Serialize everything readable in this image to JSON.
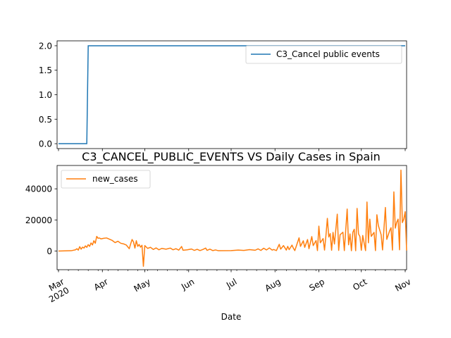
{
  "chart_data": [
    {
      "type": "line",
      "title": "",
      "xlabel": "",
      "ylabel": "",
      "x_range": [
        "2020-03-01",
        "2020-11-01"
      ],
      "ylim": [
        -0.1,
        2.1
      ],
      "y_ticks": [
        0.0,
        0.5,
        1.0,
        1.5,
        2.0
      ],
      "y_tick_labels": [
        "0.0",
        "0.5",
        "1.0",
        "1.5",
        "2.0"
      ],
      "legend_position": "upper-right",
      "grid": false,
      "series": [
        {
          "name": "C3_Cancel public events",
          "color": "#1f77b4",
          "points": [
            {
              "x": "2020-03-01",
              "y": 0
            },
            {
              "x": "2020-03-21",
              "y": 0
            },
            {
              "x": "2020-03-22",
              "y": 2
            },
            {
              "x": "2020-11-01",
              "y": 2
            }
          ]
        }
      ]
    },
    {
      "type": "line",
      "title": "C3_CANCEL_PUBLIC_EVENTS VS Daily Cases in Spain",
      "xlabel": "Date",
      "ylabel": "",
      "x_range": [
        "2020-03-01",
        "2020-11-01"
      ],
      "ylim": [
        -12000,
        55000
      ],
      "y_ticks": [
        0,
        20000,
        40000
      ],
      "y_tick_labels": [
        "0",
        "20000",
        "40000"
      ],
      "x_ticks": [
        {
          "date": "2020-03-01",
          "label": "Mar\n2020"
        },
        {
          "date": "2020-04-01",
          "label": "Apr"
        },
        {
          "date": "2020-05-01",
          "label": "May"
        },
        {
          "date": "2020-06-01",
          "label": "Jun"
        },
        {
          "date": "2020-07-01",
          "label": "Jul"
        },
        {
          "date": "2020-08-01",
          "label": "Aug"
        },
        {
          "date": "2020-09-01",
          "label": "Sep"
        },
        {
          "date": "2020-10-01",
          "label": "Oct"
        },
        {
          "date": "2020-11-01",
          "label": "Nov"
        }
      ],
      "legend_position": "upper-left",
      "grid": false,
      "series": [
        {
          "name": "new_cases",
          "color": "#ff7f0e",
          "points": [
            {
              "x": "2020-03-01",
              "y": 0
            },
            {
              "x": "2020-03-10",
              "y": 200
            },
            {
              "x": "2020-03-13",
              "y": 800
            },
            {
              "x": "2020-03-14",
              "y": 1500
            },
            {
              "x": "2020-03-15",
              "y": 600
            },
            {
              "x": "2020-03-16",
              "y": 2800
            },
            {
              "x": "2020-03-17",
              "y": 1200
            },
            {
              "x": "2020-03-18",
              "y": 2500
            },
            {
              "x": "2020-03-19",
              "y": 1900
            },
            {
              "x": "2020-03-20",
              "y": 3300
            },
            {
              "x": "2020-03-21",
              "y": 2400
            },
            {
              "x": "2020-03-22",
              "y": 4100
            },
            {
              "x": "2020-03-23",
              "y": 3000
            },
            {
              "x": "2020-03-24",
              "y": 5200
            },
            {
              "x": "2020-03-25",
              "y": 3900
            },
            {
              "x": "2020-03-26",
              "y": 6600
            },
            {
              "x": "2020-03-27",
              "y": 5000
            },
            {
              "x": "2020-03-28",
              "y": 9400
            },
            {
              "x": "2020-03-29",
              "y": 8200
            },
            {
              "x": "2020-03-30",
              "y": 8400
            },
            {
              "x": "2020-03-31",
              "y": 7800
            },
            {
              "x": "2020-04-02",
              "y": 8200
            },
            {
              "x": "2020-04-04",
              "y": 8400
            },
            {
              "x": "2020-04-06",
              "y": 7600
            },
            {
              "x": "2020-04-08",
              "y": 6800
            },
            {
              "x": "2020-04-10",
              "y": 5400
            },
            {
              "x": "2020-04-12",
              "y": 6300
            },
            {
              "x": "2020-04-14",
              "y": 5000
            },
            {
              "x": "2020-04-16",
              "y": 4600
            },
            {
              "x": "2020-04-18",
              "y": 3800
            },
            {
              "x": "2020-04-20",
              "y": 1500
            },
            {
              "x": "2020-04-21",
              "y": 4600
            },
            {
              "x": "2020-04-22",
              "y": 7400
            },
            {
              "x": "2020-04-23",
              "y": 5900
            },
            {
              "x": "2020-04-24",
              "y": 1900
            },
            {
              "x": "2020-04-25",
              "y": 6600
            },
            {
              "x": "2020-04-26",
              "y": 3000
            },
            {
              "x": "2020-04-27",
              "y": 4200
            },
            {
              "x": "2020-04-28",
              "y": 2500
            },
            {
              "x": "2020-04-29",
              "y": 3700
            },
            {
              "x": "2020-04-30",
              "y": -9800
            },
            {
              "x": "2020-05-01",
              "y": 3500
            },
            {
              "x": "2020-05-03",
              "y": 1700
            },
            {
              "x": "2020-05-05",
              "y": 2400
            },
            {
              "x": "2020-05-07",
              "y": 1000
            },
            {
              "x": "2020-05-09",
              "y": 2000
            },
            {
              "x": "2020-05-11",
              "y": 800
            },
            {
              "x": "2020-05-13",
              "y": 1700
            },
            {
              "x": "2020-05-16",
              "y": 1200
            },
            {
              "x": "2020-05-19",
              "y": 1900
            },
            {
              "x": "2020-05-21",
              "y": 800
            },
            {
              "x": "2020-05-23",
              "y": 1500
            },
            {
              "x": "2020-05-25",
              "y": 600
            },
            {
              "x": "2020-05-27",
              "y": 2900
            },
            {
              "x": "2020-05-28",
              "y": 500
            },
            {
              "x": "2020-05-31",
              "y": 800
            },
            {
              "x": "2020-06-03",
              "y": 1300
            },
            {
              "x": "2020-06-05",
              "y": 400
            },
            {
              "x": "2020-06-07",
              "y": 1100
            },
            {
              "x": "2020-06-09",
              "y": 300
            },
            {
              "x": "2020-06-11",
              "y": 1000
            },
            {
              "x": "2020-06-13",
              "y": 1900
            },
            {
              "x": "2020-06-14",
              "y": 400
            },
            {
              "x": "2020-06-16",
              "y": 1200
            },
            {
              "x": "2020-06-18",
              "y": 300
            },
            {
              "x": "2020-06-20",
              "y": 700
            },
            {
              "x": "2020-06-22",
              "y": 200
            },
            {
              "x": "2020-07-01",
              "y": 300
            },
            {
              "x": "2020-07-06",
              "y": 600
            },
            {
              "x": "2020-07-10",
              "y": 400
            },
            {
              "x": "2020-07-14",
              "y": 900
            },
            {
              "x": "2020-07-18",
              "y": 500
            },
            {
              "x": "2020-07-20",
              "y": 1400
            },
            {
              "x": "2020-07-22",
              "y": 400
            },
            {
              "x": "2020-07-24",
              "y": 1800
            },
            {
              "x": "2020-07-26",
              "y": 700
            },
            {
              "x": "2020-07-28",
              "y": 2000
            },
            {
              "x": "2020-07-30",
              "y": 600
            },
            {
              "x": "2020-07-31",
              "y": 1000
            },
            {
              "x": "2020-08-02",
              "y": 300
            },
            {
              "x": "2020-08-04",
              "y": 4300
            },
            {
              "x": "2020-08-05",
              "y": 1200
            },
            {
              "x": "2020-08-07",
              "y": 3500
            },
            {
              "x": "2020-08-09",
              "y": 600
            },
            {
              "x": "2020-08-10",
              "y": 3000
            },
            {
              "x": "2020-08-11",
              "y": 900
            },
            {
              "x": "2020-08-13",
              "y": 3800
            },
            {
              "x": "2020-08-14",
              "y": 1800
            },
            {
              "x": "2020-08-15",
              "y": 300
            },
            {
              "x": "2020-08-18",
              "y": 8500
            },
            {
              "x": "2020-08-19",
              "y": 3000
            },
            {
              "x": "2020-08-21",
              "y": 6600
            },
            {
              "x": "2020-08-22",
              "y": 2400
            },
            {
              "x": "2020-08-24",
              "y": 7400
            },
            {
              "x": "2020-08-25",
              "y": 1500
            },
            {
              "x": "2020-08-27",
              "y": 9300
            },
            {
              "x": "2020-08-28",
              "y": 3500
            },
            {
              "x": "2020-08-30",
              "y": 6700
            },
            {
              "x": "2020-08-31",
              "y": 300
            },
            {
              "x": "2020-09-01",
              "y": 16000
            },
            {
              "x": "2020-09-02",
              "y": 5300
            },
            {
              "x": "2020-09-04",
              "y": 8000
            },
            {
              "x": "2020-09-05",
              "y": 600
            },
            {
              "x": "2020-09-06",
              "y": 10000
            },
            {
              "x": "2020-09-07",
              "y": 21000
            },
            {
              "x": "2020-09-08",
              "y": 9000
            },
            {
              "x": "2020-09-09",
              "y": 11200
            },
            {
              "x": "2020-09-10",
              "y": 500
            },
            {
              "x": "2020-09-11",
              "y": 12000
            },
            {
              "x": "2020-09-12",
              "y": 4500
            },
            {
              "x": "2020-09-14",
              "y": 23700
            },
            {
              "x": "2020-09-15",
              "y": 400
            },
            {
              "x": "2020-09-16",
              "y": 10500
            },
            {
              "x": "2020-09-18",
              "y": 12100
            },
            {
              "x": "2020-09-19",
              "y": 300
            },
            {
              "x": "2020-09-21",
              "y": 27000
            },
            {
              "x": "2020-09-22",
              "y": 4000
            },
            {
              "x": "2020-09-23",
              "y": 11000
            },
            {
              "x": "2020-09-24",
              "y": 200
            },
            {
              "x": "2020-09-25",
              "y": 12000
            },
            {
              "x": "2020-09-26",
              "y": 14000
            },
            {
              "x": "2020-09-27",
              "y": 200
            },
            {
              "x": "2020-09-28",
              "y": 27400
            },
            {
              "x": "2020-09-29",
              "y": 11000
            },
            {
              "x": "2020-09-30",
              "y": 9300
            },
            {
              "x": "2020-10-01",
              "y": 500
            },
            {
              "x": "2020-10-02",
              "y": 10000
            },
            {
              "x": "2020-10-04",
              "y": 300
            },
            {
              "x": "2020-10-05",
              "y": 31500
            },
            {
              "x": "2020-10-06",
              "y": 5300
            },
            {
              "x": "2020-10-07",
              "y": 20500
            },
            {
              "x": "2020-10-08",
              "y": 9400
            },
            {
              "x": "2020-10-10",
              "y": 12000
            },
            {
              "x": "2020-10-11",
              "y": 300
            },
            {
              "x": "2020-10-12",
              "y": 23300
            },
            {
              "x": "2020-10-13",
              "y": 16500
            },
            {
              "x": "2020-10-15",
              "y": 10500
            },
            {
              "x": "2020-10-16",
              "y": 700
            },
            {
              "x": "2020-10-17",
              "y": 14400
            },
            {
              "x": "2020-10-18",
              "y": 28000
            },
            {
              "x": "2020-10-19",
              "y": 7500
            },
            {
              "x": "2020-10-21",
              "y": 13000
            },
            {
              "x": "2020-10-22",
              "y": 15000
            },
            {
              "x": "2020-10-23",
              "y": 600
            },
            {
              "x": "2020-10-24",
              "y": 38000
            },
            {
              "x": "2020-10-25",
              "y": 14700
            },
            {
              "x": "2020-10-26",
              "y": 18500
            },
            {
              "x": "2020-10-27",
              "y": 20500
            },
            {
              "x": "2020-10-28",
              "y": 800
            },
            {
              "x": "2020-10-29",
              "y": 52000
            },
            {
              "x": "2020-10-30",
              "y": 18300
            },
            {
              "x": "2020-10-31",
              "y": 20500
            },
            {
              "x": "2020-11-01",
              "y": 25300
            },
            {
              "x": "2020-11-02",
              "y": 300
            }
          ]
        }
      ]
    }
  ]
}
